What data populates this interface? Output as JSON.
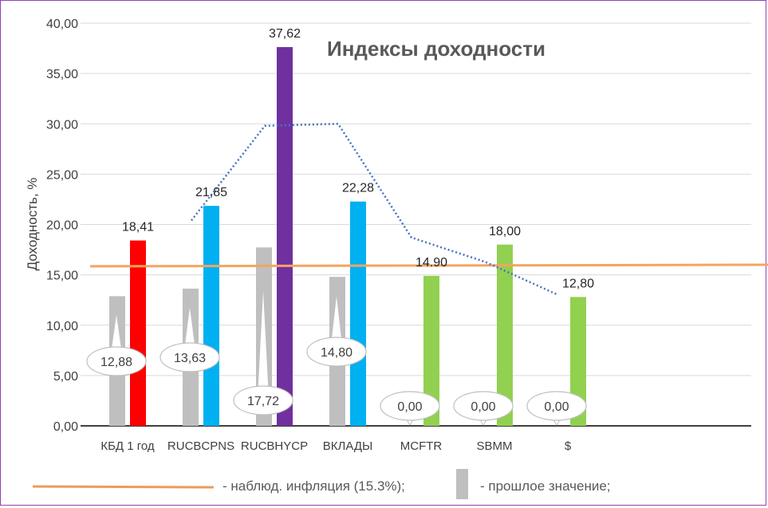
{
  "chart_data": {
    "type": "bar",
    "title": "Индексы доходности",
    "ylabel": "Доходность, %",
    "xlabel": "",
    "ylim": [
      0,
      40
    ],
    "yticks": [
      "0,00",
      "5,00",
      "10,00",
      "15,00",
      "20,00",
      "25,00",
      "30,00",
      "35,00",
      "40,00"
    ],
    "grid": true,
    "categories": [
      "КБД 1 год",
      "RUCBCPNS",
      "RUCBHYCP",
      "ВКЛАДЫ",
      "MCFTR",
      "SBMM",
      "$"
    ],
    "series": [
      {
        "name": "прошлое значение",
        "values": [
          12.88,
          13.63,
          17.72,
          14.8,
          0.0,
          0.0,
          0.0
        ],
        "labels": [
          "12,88",
          "13,63",
          "17,72",
          "14,80",
          "0,00",
          "0,00",
          "0,00"
        ],
        "color": "#bfbfbf"
      },
      {
        "name": "",
        "values": [
          18.41,
          21.85,
          37.62,
          22.28,
          14.9,
          18.0,
          12.8
        ],
        "labels": [
          "18,41",
          "21,85",
          "37,62",
          "22,28",
          "14.90",
          "18,00",
          "12,80"
        ],
        "colors": [
          "#ff0000",
          "#00b0f0",
          "#7030a0",
          "#00b0f0",
          "#92d050",
          "#92d050",
          "#92d050"
        ]
      }
    ],
    "trend_line": {
      "style": "dotted",
      "color": "#4472c4",
      "points": [
        [
          1,
          20.4
        ],
        [
          2,
          29.8
        ],
        [
          3,
          30.0
        ],
        [
          4,
          18.7
        ],
        [
          5,
          16.3
        ],
        [
          6,
          13.0
        ]
      ]
    },
    "inflation_line": {
      "color": "#f4a460",
      "from": 15.85,
      "to": 16.0
    },
    "legend": {
      "position": "bottom",
      "items": [
        {
          "label": "- наблюд. инфляция (15.3%);",
          "color": "#ed9b5a"
        },
        {
          "label": "- прошлое значение;",
          "color": "#bfbfbf"
        }
      ]
    }
  }
}
